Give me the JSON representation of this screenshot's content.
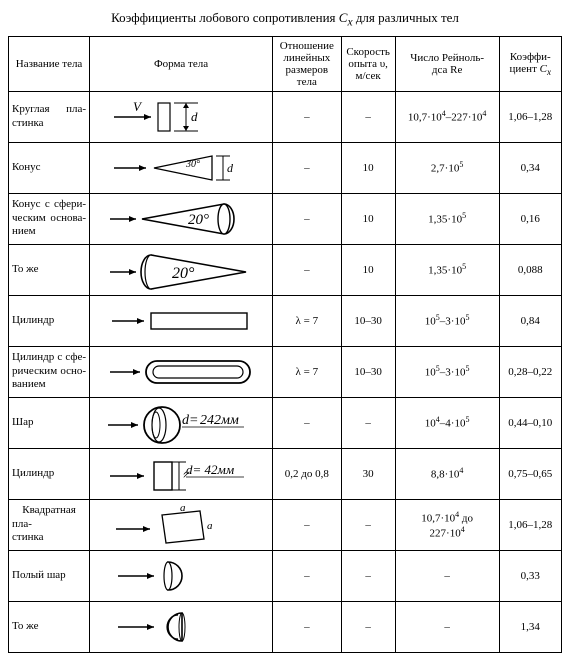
{
  "title_main": "Коэффициенты лобового сопротивления ",
  "title_cx": "C",
  "title_cx_sub": "x",
  "title_tail": " для различных тел",
  "headers": {
    "name": "Название тела",
    "shape": "Форма тела",
    "ratio1": "Отношение",
    "ratio2": "линейных",
    "ratio3": "размеров",
    "ratio4": "тела",
    "speed1": "Скорость",
    "speed2": "опыта υ,",
    "speed3": "м/сек",
    "re1": "Число Рейноль-",
    "re2": "дса Re",
    "cx1": "Коэффи-",
    "cx2": "циент ",
    "cx2b": "C",
    "cx2c": "x"
  },
  "rows": [
    {
      "name_html": "Круглая пла-<br><span class='nj'>стинка</span>",
      "ratio": "–",
      "speed": "–",
      "re": "10,7·10<sup>4</sup>–227·10<sup>4</sup>",
      "cx": "1,06–1,28",
      "shape": "plate"
    },
    {
      "name_html": "<span class='nj'>Конус</span>",
      "ratio": "–",
      "speed": "10",
      "re": "2,7·10<sup>5</sup>",
      "cx": "0,34",
      "shape": "cone30"
    },
    {
      "name_html": "Конус с сфери-<br>ческим основа-<br><span class='nj'>нием</span>",
      "ratio": "–",
      "speed": "10",
      "re": "1,35·10<sup>5</sup>",
      "cx": "0,16",
      "shape": "cone20a"
    },
    {
      "name_html": "<span class='nj'>То же</span>",
      "ratio": "–",
      "speed": "10",
      "re": "1,35·10<sup>5</sup>",
      "cx": "0,088",
      "shape": "cone20b"
    },
    {
      "name_html": "<span class='nj'>Цилиндр</span>",
      "ratio": "λ = 7",
      "speed": "10–30",
      "re": "10<sup>5</sup>–3·10<sup>5</sup>",
      "cx": "0,84",
      "shape": "cyl"
    },
    {
      "name_html": "Цилиндр с сфе-<br>рическим осно-<br><span class='nj'>ванием</span>",
      "ratio": "λ = 7",
      "speed": "10–30",
      "re": "10<sup>5</sup>–3·10<sup>5</sup>",
      "cx": "0,28–0,22",
      "shape": "cylround"
    },
    {
      "name_html": "<span class='nj'>Шар</span>",
      "ratio": "–",
      "speed": "–",
      "re": "10<sup>4</sup>–4·10<sup>5</sup>",
      "cx": "0,44–0,10",
      "shape": "sphere"
    },
    {
      "name_html": "<span class='nj'>Цилиндр</span>",
      "ratio": "0,2 до 0,8",
      "speed": "30",
      "re": "8,8·10<sup>4</sup>",
      "cx": "0,75–0,65",
      "shape": "cyl42"
    },
    {
      "name_html": "Квадратная пла-<br><span class='nj'>стинка</span>",
      "ratio": "–",
      "speed": "–",
      "re": "10,7·10<sup>4</sup> до<br>227·10<sup>4</sup>",
      "cx": "1,06–1,28",
      "shape": "square"
    },
    {
      "name_html": "<span class='nj'>Полый шар</span>",
      "ratio": "–",
      "speed": "–",
      "re": "–",
      "cx": "0,33",
      "shape": "hemi1"
    },
    {
      "name_html": "<span class='nj'>То же</span>",
      "ratio": "–",
      "speed": "–",
      "re": "–",
      "cx": "1,34",
      "shape": "hemi2"
    }
  ],
  "svg_common": {
    "stroke": "#000000",
    "hatch": "#000000",
    "fontfam": "Times New Roman, serif"
  }
}
